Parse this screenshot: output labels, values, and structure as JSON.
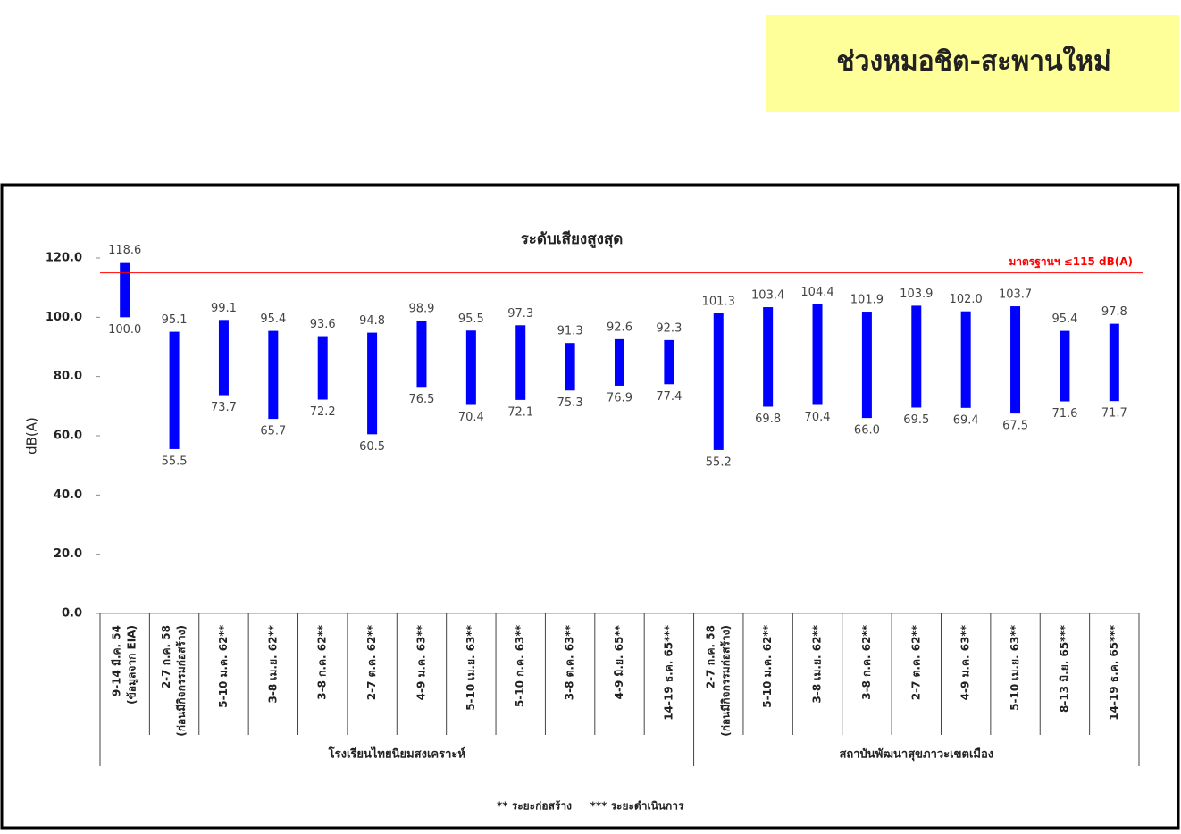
{
  "header": {
    "title": "ช่วงหมอชิต-สะพานใหม่"
  },
  "chart_data": {
    "type": "range_bar",
    "title": "ระดับเสียงสูงสุด",
    "y_label": "dB(A)",
    "color": "#0000ff",
    "ylim": [
      0,
      120
    ],
    "yticks": [
      {
        "value": 0,
        "label": "0.0"
      },
      {
        "value": 20,
        "label": "20.0"
      },
      {
        "value": 40,
        "label": "40.0"
      },
      {
        "value": 60,
        "label": "60.0"
      },
      {
        "value": 80,
        "label": "80.0"
      },
      {
        "value": 100,
        "label": "100.0"
      },
      {
        "value": 120,
        "label": "120.0"
      }
    ],
    "reference_line": {
      "value": 115,
      "label": "มาตรฐานฯ ≤115 dB(A)",
      "color": "#ff0000"
    },
    "groups": [
      {
        "name": "โรงเรียนไทยนิยมสงเคราะห์",
        "categories": [
          [
            "9-14 มี.ค. 54",
            "(ข้อมูลจาก EIA)"
          ],
          [
            "2-7 ก.ค. 58",
            "(ก่อนมีกิจกรรมก่อสร้าง)"
          ],
          [
            "5-10 ม.ค. 62**"
          ],
          [
            "3-8 เม.ย. 62**"
          ],
          [
            "3-8 ก.ค. 62**"
          ],
          [
            "2-7 ต.ค. 62**"
          ],
          [
            "4-9 ม.ค. 63**"
          ],
          [
            "5-10 เม.ย. 63**"
          ],
          [
            "5-10 ก.ค. 63**"
          ],
          [
            "3-8 ต.ค. 63**"
          ],
          [
            "4-9 มิ.ย. 65**"
          ],
          [
            "14-19 ธ.ค. 65***"
          ]
        ],
        "lows": [
          100.0,
          55.5,
          73.7,
          65.7,
          72.2,
          60.5,
          76.5,
          70.4,
          72.1,
          75.3,
          76.9,
          77.4
        ],
        "low_labels": [
          "100.0",
          "55.5",
          "73.7",
          "65.7",
          "72.2",
          "60.5",
          "76.5",
          "70.4",
          "72.1",
          "75.3",
          "76.9",
          "77.4"
        ],
        "highs": [
          118.6,
          95.1,
          99.1,
          95.4,
          93.6,
          94.8,
          98.9,
          95.5,
          97.3,
          91.3,
          92.6,
          92.3
        ],
        "high_labels": [
          "118.6",
          "95.1",
          "99.1",
          "95.4",
          "93.6",
          "94.8",
          "98.9",
          "95.5",
          "97.3",
          "91.3",
          "92.6",
          "92.3"
        ]
      },
      {
        "name": "สถาบันพัฒนาสุขภาวะเขตเมือง",
        "categories": [
          [
            "2-7 ก.ค. 58",
            "(ก่อนมีกิจกรรมก่อสร้าง)"
          ],
          [
            "5-10 ม.ค. 62**"
          ],
          [
            "3-8 เม.ย. 62**"
          ],
          [
            "3-8 ก.ค. 62**"
          ],
          [
            "2-7 ต.ค. 62**"
          ],
          [
            "4-9 ม.ค. 63**"
          ],
          [
            "5-10 เม.ย. 63**"
          ],
          [
            "8-13 มิ.ย. 65***"
          ],
          [
            "14-19 ธ.ค. 65***"
          ]
        ],
        "lows": [
          55.2,
          69.8,
          70.4,
          66.0,
          69.5,
          69.4,
          67.5,
          71.6,
          71.7
        ],
        "low_labels": [
          "55.2",
          "69.8",
          "70.4",
          "66.0",
          "69.5",
          "69.4",
          "67.5",
          "71.6",
          "71.7"
        ],
        "highs": [
          101.3,
          103.4,
          104.4,
          101.9,
          103.9,
          102.0,
          103.7,
          95.4,
          97.8
        ],
        "high_labels": [
          "101.3",
          "103.4",
          "104.4",
          "101.9",
          "103.9",
          "102.0",
          "103.7",
          "95.4",
          "97.8"
        ]
      }
    ],
    "footnotes": [
      "** ระยะก่อสร้าง",
      "*** ระยะดำเนินการ"
    ]
  }
}
